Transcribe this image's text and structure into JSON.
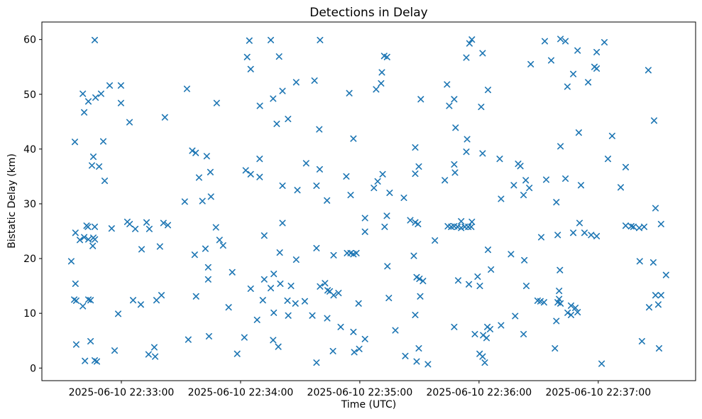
{
  "chart_data": {
    "type": "scatter",
    "title": "Detections in Delay",
    "xlabel": "Time (UTC)",
    "ylabel": "Bistatic Delay (km)",
    "marker": "x",
    "marker_color": "#1f77b4",
    "axis_color": "#000000",
    "background": "#ffffff",
    "grid": false,
    "legend": false,
    "x_unit": "seconds after 2025-06-10 22:33:00",
    "xlim": [
      -40,
      289
    ],
    "ylim": [
      -2.3,
      63.2
    ],
    "x_ticks": [
      {
        "value": 0,
        "label": "2025-06-10 22:33:00"
      },
      {
        "value": 60,
        "label": "2025-06-10 22:34:00"
      },
      {
        "value": 120,
        "label": "2025-06-10 22:35:00"
      },
      {
        "value": 180,
        "label": "2025-06-10 22:36:00"
      },
      {
        "value": 240,
        "label": "2025-06-10 22:37:00"
      }
    ],
    "y_ticks": [
      0,
      10,
      20,
      30,
      40,
      50,
      60
    ],
    "points": [
      [
        -13.4,
        59.9
      ],
      [
        -5.9,
        51.6
      ],
      [
        -0.2,
        51.6
      ],
      [
        -19.4,
        50.1
      ],
      [
        -16.6,
        48.7
      ],
      [
        -13,
        49.4
      ],
      [
        -10.2,
        50.1
      ],
      [
        -0.2,
        48.4
      ],
      [
        -18.7,
        46.7
      ],
      [
        4.1,
        44.9
      ],
      [
        -23.4,
        41.3
      ],
      [
        -9.1,
        41.4
      ],
      [
        -14.1,
        38.6
      ],
      [
        -14.8,
        37
      ],
      [
        -11.2,
        36.8
      ],
      [
        -8.4,
        34.2
      ],
      [
        64.4,
        59.8
      ],
      [
        63.3,
        56.8
      ],
      [
        65.1,
        54.6
      ],
      [
        33,
        51
      ],
      [
        48,
        48.4
      ],
      [
        21.9,
        45.8
      ],
      [
        35.7,
        39.7
      ],
      [
        37.4,
        39.3
      ],
      [
        43,
        38.7
      ],
      [
        44.8,
        35.8
      ],
      [
        39.1,
        34.8
      ],
      [
        62.6,
        36.1
      ],
      [
        65.1,
        35.4
      ],
      [
        45.1,
        31.3
      ],
      [
        75.2,
        59.9
      ],
      [
        100,
        59.9
      ],
      [
        79.4,
        56.9
      ],
      [
        88,
        52.2
      ],
      [
        97.2,
        52.5
      ],
      [
        81.1,
        50.6
      ],
      [
        114.7,
        50.2
      ],
      [
        76.4,
        49.2
      ],
      [
        69.7,
        47.9
      ],
      [
        83.9,
        45.5
      ],
      [
        78.2,
        44.6
      ],
      [
        99.6,
        43.6
      ],
      [
        116.8,
        41.9
      ],
      [
        69.6,
        38.2
      ],
      [
        93,
        37.4
      ],
      [
        99.8,
        36.3
      ],
      [
        69.6,
        34.9
      ],
      [
        113.2,
        35
      ],
      [
        81.1,
        33.3
      ],
      [
        88.6,
        32.5
      ],
      [
        98.2,
        33.3
      ],
      [
        115.4,
        31.6
      ],
      [
        175.2,
        59.3
      ],
      [
        132.3,
        57
      ],
      [
        133.7,
        56.8
      ],
      [
        173.6,
        56.7
      ],
      [
        131.1,
        54
      ],
      [
        130.7,
        52
      ],
      [
        128.2,
        50.9
      ],
      [
        163.9,
        51.8
      ],
      [
        150.7,
        49.1
      ],
      [
        167.5,
        49.1
      ],
      [
        165,
        47.9
      ],
      [
        168.2,
        43.9
      ],
      [
        174,
        41.8
      ],
      [
        147.9,
        40.3
      ],
      [
        173.6,
        39.5
      ],
      [
        167.5,
        37.2
      ],
      [
        149.7,
        36.8
      ],
      [
        167.9,
        35.7
      ],
      [
        147.9,
        35.5
      ],
      [
        162.8,
        34.3
      ],
      [
        131.5,
        35.4
      ],
      [
        129,
        34.1
      ],
      [
        127.1,
        32.9
      ],
      [
        135,
        32
      ],
      [
        142.2,
        31.1
      ],
      [
        176.4,
        60
      ],
      [
        213.1,
        59.7
      ],
      [
        221,
        60.1
      ],
      [
        223.5,
        59.7
      ],
      [
        229.6,
        58
      ],
      [
        181.8,
        57.5
      ],
      [
        206,
        55.5
      ],
      [
        216.3,
        56.2
      ],
      [
        227.4,
        53.7
      ],
      [
        224.5,
        51.4
      ],
      [
        184.5,
        50.8
      ],
      [
        181.1,
        47.7
      ],
      [
        221,
        40.5
      ],
      [
        181.8,
        39.2
      ],
      [
        190.4,
        38.2
      ],
      [
        199.7,
        37.3
      ],
      [
        200.8,
        36.9
      ],
      [
        203.5,
        34.3
      ],
      [
        197.5,
        33.4
      ],
      [
        213.8,
        34.4
      ],
      [
        223.5,
        34.6
      ],
      [
        205.3,
        32.9
      ],
      [
        202.4,
        31.6
      ],
      [
        243.1,
        59.5
      ],
      [
        239.2,
        57.7
      ],
      [
        238.1,
        55
      ],
      [
        239.2,
        54.7
      ],
      [
        234.9,
        52.2
      ],
      [
        265.2,
        54.4
      ],
      [
        268.1,
        45.2
      ],
      [
        230.2,
        43
      ],
      [
        247,
        42.4
      ],
      [
        244.9,
        38.2
      ],
      [
        253.8,
        36.7
      ],
      [
        231.3,
        33.4
      ],
      [
        251.3,
        33
      ],
      [
        -23.1,
        24.7
      ],
      [
        -17.5,
        26
      ],
      [
        -16.8,
        25.8
      ],
      [
        -13.4,
        25.8
      ],
      [
        -4.9,
        25.5
      ],
      [
        3,
        26.7
      ],
      [
        4.2,
        26.3
      ],
      [
        7,
        25.4
      ],
      [
        12.7,
        26.6
      ],
      [
        14.1,
        25.4
      ],
      [
        -20.9,
        23.4
      ],
      [
        -18.7,
        23.9
      ],
      [
        -16.6,
        23.5
      ],
      [
        -14.1,
        23.8
      ],
      [
        -13.3,
        23.5
      ],
      [
        -14.4,
        22.3
      ],
      [
        10.2,
        21.7
      ],
      [
        -25.2,
        19.5
      ],
      [
        -23.1,
        15.4
      ],
      [
        -23.7,
        12.5
      ],
      [
        -22.7,
        12.3
      ],
      [
        -19.4,
        11.3
      ],
      [
        -16.6,
        12.5
      ],
      [
        -15.5,
        12.4
      ],
      [
        5.9,
        12.4
      ],
      [
        9.8,
        11.6
      ],
      [
        -1.6,
        9.9
      ],
      [
        -22.7,
        4.3
      ],
      [
        -15.5,
        4.9
      ],
      [
        -3.4,
        3.2
      ],
      [
        13.7,
        2.5
      ],
      [
        -18.3,
        1.3
      ],
      [
        -13.4,
        1.4
      ],
      [
        -12.3,
        1.2
      ],
      [
        31.9,
        30.4
      ],
      [
        40.8,
        30.5
      ],
      [
        21.2,
        26.5
      ],
      [
        23.4,
        26.1
      ],
      [
        47.6,
        25.7
      ],
      [
        19.4,
        22.2
      ],
      [
        49.4,
        23.4
      ],
      [
        51.2,
        22.4
      ],
      [
        42.3,
        21.8
      ],
      [
        36.9,
        20.7
      ],
      [
        43.7,
        18.4
      ],
      [
        55.8,
        17.5
      ],
      [
        43.7,
        16.2
      ],
      [
        65.1,
        14.5
      ],
      [
        17.7,
        12.4
      ],
      [
        20.2,
        13.3
      ],
      [
        37.6,
        13.1
      ],
      [
        54,
        11.1
      ],
      [
        33.7,
        5.2
      ],
      [
        44.1,
        5.8
      ],
      [
        61.9,
        5.6
      ],
      [
        16.6,
        3.8
      ],
      [
        17,
        2.1
      ],
      [
        58.3,
        2.6
      ],
      [
        103.5,
        30.6
      ],
      [
        81.1,
        26.5
      ],
      [
        71.9,
        24.2
      ],
      [
        98.2,
        21.9
      ],
      [
        79.7,
        21.1
      ],
      [
        88,
        19.8
      ],
      [
        106.8,
        20.6
      ],
      [
        113.6,
        21
      ],
      [
        115.4,
        21
      ],
      [
        116.8,
        20.8
      ],
      [
        118.3,
        21
      ],
      [
        76.7,
        17.2
      ],
      [
        71.9,
        16.2
      ],
      [
        80,
        15.4
      ],
      [
        75.2,
        14.6
      ],
      [
        85.4,
        15
      ],
      [
        100,
        14.9
      ],
      [
        102.5,
        15.5
      ],
      [
        103.8,
        14.2
      ],
      [
        104.9,
        14
      ],
      [
        106.8,
        13.3
      ],
      [
        109.3,
        13.7
      ],
      [
        71.2,
        12.4
      ],
      [
        83.6,
        12.3
      ],
      [
        87.6,
        11.8
      ],
      [
        92.3,
        12.2
      ],
      [
        119.4,
        11.8
      ],
      [
        76.7,
        10.1
      ],
      [
        68.3,
        8.8
      ],
      [
        84,
        9.6
      ],
      [
        96.1,
        9.6
      ],
      [
        103.6,
        9.1
      ],
      [
        110.4,
        7.5
      ],
      [
        116.8,
        6.6
      ],
      [
        76.4,
        5.1
      ],
      [
        79,
        3.9
      ],
      [
        106.5,
        3.1
      ],
      [
        117.2,
        2.9
      ],
      [
        119.7,
        3.5
      ],
      [
        98.2,
        1
      ],
      [
        122.6,
        27.4
      ],
      [
        133.6,
        27.8
      ],
      [
        132.5,
        25.8
      ],
      [
        122.6,
        24.9
      ],
      [
        145.4,
        27
      ],
      [
        147.9,
        26.6
      ],
      [
        149.3,
        26.3
      ],
      [
        171,
        26.8
      ],
      [
        164.3,
        25.9
      ],
      [
        166,
        25.8
      ],
      [
        167.5,
        25.9
      ],
      [
        169.2,
        25.8
      ],
      [
        171,
        25.6
      ],
      [
        172.8,
        25.8
      ],
      [
        174.6,
        25.8
      ],
      [
        176.1,
        25.8
      ],
      [
        157.8,
        23.3
      ],
      [
        147.2,
        20.5
      ],
      [
        133.9,
        18.6
      ],
      [
        148.6,
        16.6
      ],
      [
        150,
        16.3
      ],
      [
        151.8,
        15.9
      ],
      [
        169.5,
        16
      ],
      [
        174.9,
        15.3
      ],
      [
        134.6,
        12.8
      ],
      [
        150.4,
        13.1
      ],
      [
        147.9,
        9.7
      ],
      [
        137.9,
        6.9
      ],
      [
        167.5,
        7.5
      ],
      [
        122.6,
        5.3
      ],
      [
        149.7,
        3.6
      ],
      [
        142.9,
        2.2
      ],
      [
        148.6,
        1.2
      ],
      [
        154.3,
        0.7
      ],
      [
        191.1,
        30.9
      ],
      [
        218.9,
        30.3
      ],
      [
        176.4,
        26.7
      ],
      [
        211.3,
        23.9
      ],
      [
        219.6,
        24.3
      ],
      [
        227.4,
        24.7
      ],
      [
        184.5,
        21.6
      ],
      [
        196.1,
        20.8
      ],
      [
        202.8,
        19.7
      ],
      [
        186,
        18
      ],
      [
        220.7,
        17.9
      ],
      [
        179.3,
        16.7
      ],
      [
        180.4,
        15
      ],
      [
        203.8,
        15
      ],
      [
        220.3,
        14.1
      ],
      [
        220.3,
        12.6
      ],
      [
        209.5,
        12.3
      ],
      [
        210.9,
        12.2
      ],
      [
        212.7,
        12
      ],
      [
        219.6,
        12
      ],
      [
        221,
        11.8
      ],
      [
        226.3,
        11.4
      ],
      [
        228.5,
        11
      ],
      [
        224.6,
        10.1
      ],
      [
        226.3,
        9.7
      ],
      [
        218.9,
        8.6
      ],
      [
        198.2,
        9.5
      ],
      [
        191.1,
        7.8
      ],
      [
        184.2,
        7.5
      ],
      [
        185.6,
        7.1
      ],
      [
        177.9,
        6.2
      ],
      [
        182.1,
        6
      ],
      [
        183.8,
        5.5
      ],
      [
        202.4,
        6.2
      ],
      [
        218.2,
        3.6
      ],
      [
        180.3,
        2.6
      ],
      [
        181.8,
        2.1
      ],
      [
        182.9,
        1
      ],
      [
        268.8,
        29.2
      ],
      [
        230.6,
        26.5
      ],
      [
        271.6,
        26.3
      ],
      [
        253.8,
        26
      ],
      [
        256.6,
        25.9
      ],
      [
        257.7,
        25.8
      ],
      [
        260.6,
        25.6
      ],
      [
        263.1,
        25.8
      ],
      [
        233.1,
        24.7
      ],
      [
        236.4,
        24.3
      ],
      [
        239.2,
        24.1
      ],
      [
        260.9,
        19.5
      ],
      [
        267.7,
        19.3
      ],
      [
        274.1,
        17
      ],
      [
        268.8,
        13.3
      ],
      [
        271.6,
        13.3
      ],
      [
        270.2,
        11.6
      ],
      [
        265.6,
        11.1
      ],
      [
        229.6,
        10.2
      ],
      [
        262,
        4.9
      ],
      [
        270.6,
        3.6
      ],
      [
        241.7,
        0.8
      ]
    ]
  }
}
